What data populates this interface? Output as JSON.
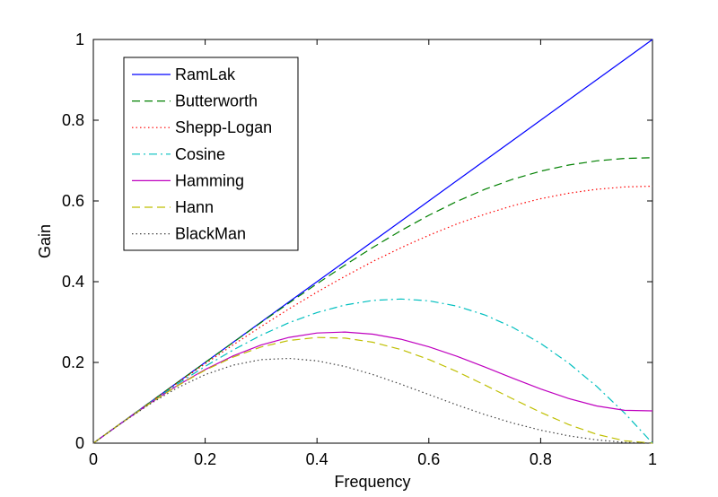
{
  "chart_data": {
    "type": "line",
    "title": "",
    "xlabel": "Frequency",
    "ylabel": "Gain",
    "xlim": [
      0,
      1
    ],
    "ylim": [
      0,
      1
    ],
    "xticks": [
      "0",
      "0.2",
      "0.4",
      "0.6",
      "0.8",
      "1"
    ],
    "yticks": [
      "0",
      "0.2",
      "0.4",
      "0.6",
      "0.8",
      "1"
    ],
    "xtick_values": [
      0,
      0.2,
      0.4,
      0.6,
      0.8,
      1
    ],
    "ytick_values": [
      0,
      0.2,
      0.4,
      0.6,
      0.8,
      1
    ],
    "grid": false,
    "legend_position": "top-left",
    "x": [
      0,
      0.05,
      0.1,
      0.15,
      0.2,
      0.25,
      0.3,
      0.35,
      0.4,
      0.45,
      0.5,
      0.55,
      0.6,
      0.65,
      0.7,
      0.75,
      0.8,
      0.85,
      0.9,
      0.95,
      1
    ],
    "series": [
      {
        "name": "RamLak",
        "color": "#0000ff",
        "dash": "solid",
        "values": [
          0,
          0.05,
          0.1,
          0.15,
          0.2,
          0.25,
          0.3,
          0.35,
          0.4,
          0.45,
          0.5,
          0.55,
          0.6,
          0.65,
          0.7,
          0.75,
          0.8,
          0.85,
          0.9,
          0.95,
          1
        ]
      },
      {
        "name": "Butterworth",
        "color": "#008000",
        "dash": "dashed",
        "values": [
          0,
          0.05,
          0.1,
          0.15,
          0.1998,
          0.2495,
          0.2988,
          0.3474,
          0.395,
          0.4411,
          0.4851,
          0.5264,
          0.5644,
          0.5987,
          0.6286,
          0.6537,
          0.6738,
          0.689,
          0.6993,
          0.7053,
          0.7071
        ]
      },
      {
        "name": "Shepp-Logan",
        "color": "#ff0000",
        "dash": "dotted",
        "values": [
          0,
          0.05,
          0.0996,
          0.1486,
          0.1967,
          0.2436,
          0.289,
          0.3326,
          0.3742,
          0.4134,
          0.4502,
          0.4841,
          0.515,
          0.5428,
          0.5672,
          0.5882,
          0.6055,
          0.619,
          0.6288,
          0.6347,
          0.6366
        ]
      },
      {
        "name": "Cosine",
        "color": "#00bfbf",
        "dash": "dashdot",
        "values": [
          0,
          0.0498,
          0.0988,
          0.1459,
          0.1902,
          0.231,
          0.2673,
          0.2984,
          0.3236,
          0.3422,
          0.3536,
          0.3572,
          0.3527,
          0.3396,
          0.3178,
          0.287,
          0.2472,
          0.1984,
          0.1408,
          0.0746,
          0
        ]
      },
      {
        "name": "Hamming",
        "color": "#bf00bf",
        "dash": "solid",
        "values": [
          0,
          0.0497,
          0.0978,
          0.1425,
          0.1824,
          0.2163,
          0.2431,
          0.2621,
          0.2729,
          0.2754,
          0.27,
          0.2575,
          0.2387,
          0.2153,
          0.1887,
          0.161,
          0.1343,
          0.1106,
          0.0923,
          0.0814,
          0.08
        ]
      },
      {
        "name": "Hann",
        "color": "#bfbf00",
        "dash": "dashed",
        "values": [
          0,
          0.0497,
          0.0976,
          0.1418,
          0.1809,
          0.2134,
          0.2382,
          0.2545,
          0.2618,
          0.2602,
          0.25,
          0.232,
          0.2073,
          0.1775,
          0.1443,
          0.1098,
          0.0764,
          0.0463,
          0.022,
          0.0059,
          0
        ]
      },
      {
        "name": "BlackMan",
        "color": "#404040",
        "dash": "dotted",
        "values": [
          0,
          0.0495,
          0.096,
          0.1369,
          0.1698,
          0.1934,
          0.2068,
          0.21,
          0.2039,
          0.19,
          0.17,
          0.1461,
          0.1205,
          0.0949,
          0.071,
          0.0498,
          0.0322,
          0.0183,
          0.0083,
          0.0021,
          0
        ]
      }
    ]
  }
}
